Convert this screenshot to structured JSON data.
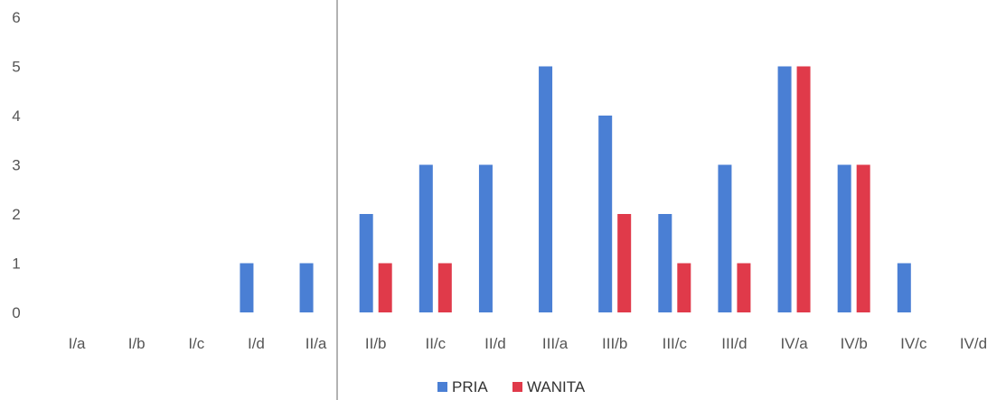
{
  "chart_data": {
    "type": "bar",
    "title": "",
    "xlabel": "",
    "ylabel": "",
    "ylim": [
      0,
      6
    ],
    "yticks": [
      0,
      1,
      2,
      3,
      4,
      5,
      6
    ],
    "grid": false,
    "legend_position": "bottom",
    "categories": [
      "I/a",
      "I/b",
      "I/c",
      "I/d",
      "II/a",
      "II/b",
      "II/c",
      "II/d",
      "III/a",
      "III/b",
      "III/c",
      "III/d",
      "IV/a",
      "IV/b",
      "IV/c",
      "IV/d"
    ],
    "series": [
      {
        "name": "PRIA",
        "color": "#4a7fd4",
        "values": [
          0,
          0,
          0,
          1,
          1,
          2,
          3,
          3,
          5,
          4,
          2,
          3,
          5,
          3,
          1,
          0
        ]
      },
      {
        "name": "WANITA",
        "color": "#e03a4a",
        "values": [
          0,
          0,
          0,
          0,
          0,
          1,
          1,
          0,
          0,
          2,
          1,
          1,
          5,
          3,
          0,
          0
        ]
      }
    ]
  }
}
